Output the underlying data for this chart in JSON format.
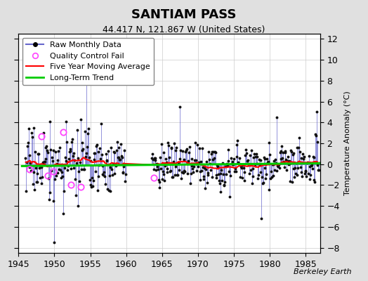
{
  "title": "SANTIAM PASS",
  "subtitle": "44.417 N, 121.867 W (United States)",
  "ylabel": "Temperature Anomaly (°C)",
  "watermark": "Berkeley Earth",
  "xlim": [
    1945,
    1987
  ],
  "ylim": [
    -8.5,
    12.5
  ],
  "yticks": [
    -8,
    -6,
    -4,
    -2,
    0,
    2,
    4,
    6,
    8,
    10,
    12
  ],
  "xticks": [
    1945,
    1950,
    1955,
    1960,
    1965,
    1970,
    1975,
    1980,
    1985
  ],
  "fig_bg_color": "#e0e0e0",
  "plot_bg_color": "#ffffff",
  "raw_line_color": "#6666cc",
  "raw_alpha": 0.7,
  "dot_color": "#111111",
  "qc_color": "#ff44ff",
  "ma_color": "#ff0000",
  "trend_color": "#00cc00",
  "grid_color": "#cccccc",
  "title_fontsize": 13,
  "subtitle_fontsize": 9,
  "tick_fontsize": 9,
  "ylabel_fontsize": 8,
  "legend_fontsize": 8,
  "watermark_fontsize": 8
}
